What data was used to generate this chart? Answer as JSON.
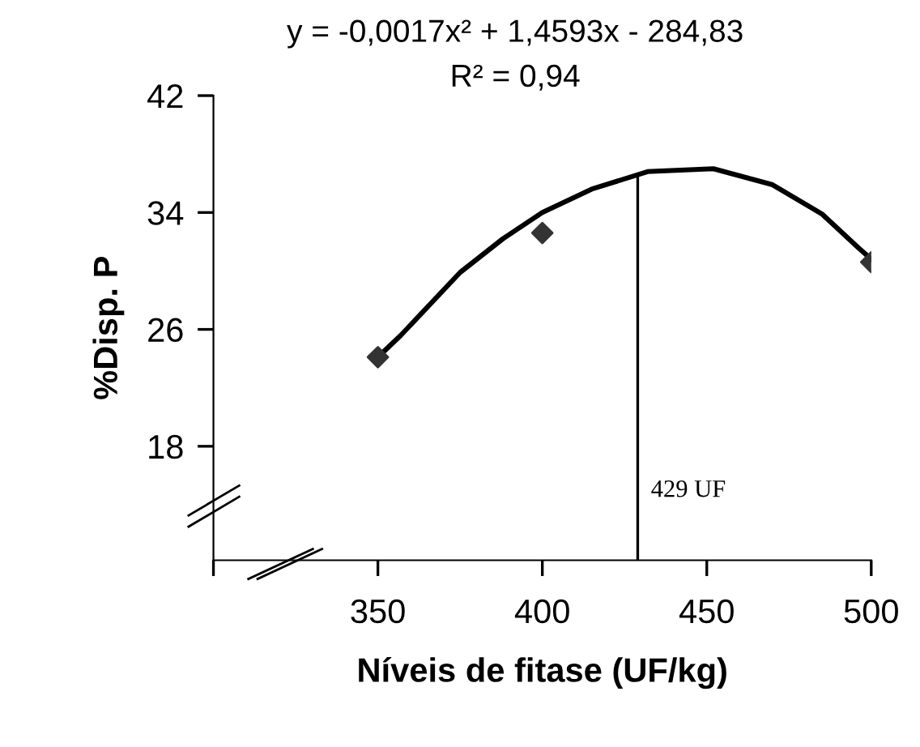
{
  "chart_data": {
    "type": "scatter",
    "xlabel": "Níveis de fitase (UF/kg)",
    "ylabel": "%Disp. P",
    "xlim": [
      300,
      500
    ],
    "ylim": [
      10.2,
      42
    ],
    "xticks": [
      {
        "value": 300,
        "label": null
      },
      350,
      400,
      450,
      500
    ],
    "yticks": [
      18,
      26,
      34,
      42
    ],
    "grid": false,
    "series": [
      {
        "color": "#333333",
        "marker": "diamond",
        "x": [
          350,
          400,
          500
        ],
        "values": [
          24.1,
          32.6,
          30.6
        ]
      },
      {
        "type": "line",
        "color": "#000000",
        "marker": "none",
        "line_style": "solid",
        "x": [
          350,
          357,
          375,
          388,
          400,
          415,
          432,
          452,
          470,
          485,
          496,
          500
        ],
        "values": [
          24.1,
          25.6,
          29.9,
          32.2,
          34.0,
          35.6,
          36.8,
          37.0,
          35.9,
          33.9,
          31.6,
          30.8
        ]
      }
    ],
    "ref_lines": [
      {
        "axis": "x",
        "value": 429,
        "label": "429 UF",
        "color": "#000000",
        "line_style": "solid"
      }
    ],
    "annotations": [
      "y = -0,0017x² + 1,4593x - 284,83",
      "R² = 0,94"
    ]
  }
}
